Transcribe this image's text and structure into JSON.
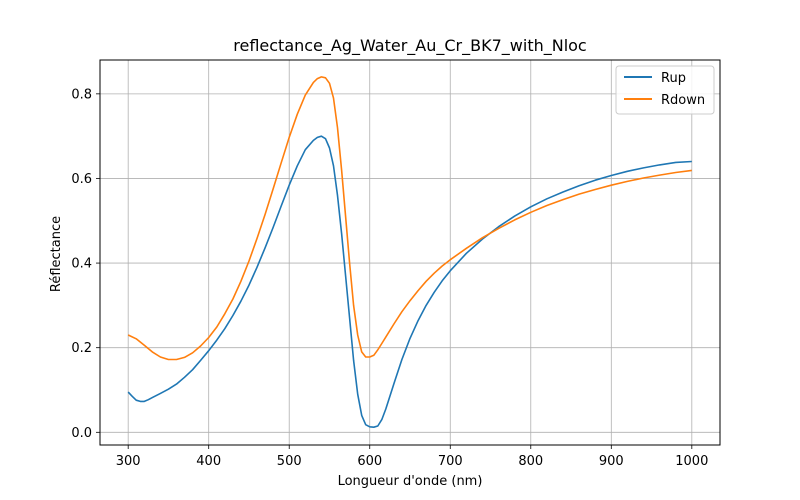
{
  "chart_data": {
    "type": "line",
    "title": "reflectance_Ag_Water_Au_Cr_BK7_with_Nloc",
    "xlabel": "Longueur d'onde (nm)",
    "ylabel": "Réflectance",
    "xlim": [
      265,
      1035
    ],
    "ylim": [
      -0.03,
      0.88
    ],
    "xticks": [
      300,
      400,
      500,
      600,
      700,
      800,
      900,
      1000
    ],
    "yticks": [
      0.0,
      0.2,
      0.4,
      0.6,
      0.8
    ],
    "grid": true,
    "legend_position": "top-right",
    "series": [
      {
        "name": "Rup",
        "color": "#1f77b4",
        "x": [
          300,
          305,
          310,
          315,
          320,
          325,
          330,
          340,
          350,
          360,
          370,
          380,
          390,
          400,
          410,
          420,
          430,
          440,
          450,
          460,
          470,
          480,
          490,
          500,
          510,
          520,
          530,
          535,
          540,
          545,
          550,
          555,
          560,
          565,
          570,
          575,
          580,
          585,
          590,
          595,
          600,
          605,
          610,
          615,
          620,
          630,
          640,
          650,
          660,
          670,
          680,
          690,
          700,
          720,
          740,
          760,
          780,
          800,
          820,
          840,
          860,
          880,
          900,
          920,
          940,
          960,
          980,
          1000
        ],
        "y": [
          0.095,
          0.085,
          0.076,
          0.073,
          0.073,
          0.077,
          0.082,
          0.092,
          0.102,
          0.114,
          0.13,
          0.148,
          0.17,
          0.193,
          0.218,
          0.245,
          0.276,
          0.31,
          0.348,
          0.39,
          0.436,
          0.484,
          0.535,
          0.584,
          0.63,
          0.668,
          0.69,
          0.697,
          0.7,
          0.694,
          0.672,
          0.63,
          0.56,
          0.47,
          0.37,
          0.27,
          0.17,
          0.09,
          0.04,
          0.018,
          0.013,
          0.012,
          0.015,
          0.03,
          0.055,
          0.115,
          0.172,
          0.222,
          0.264,
          0.3,
          0.331,
          0.358,
          0.382,
          0.423,
          0.457,
          0.486,
          0.511,
          0.533,
          0.552,
          0.568,
          0.583,
          0.596,
          0.607,
          0.617,
          0.625,
          0.632,
          0.638,
          0.64
        ]
      },
      {
        "name": "Rdown",
        "color": "#ff7f0e",
        "x": [
          300,
          310,
          320,
          330,
          340,
          350,
          360,
          370,
          380,
          390,
          400,
          410,
          420,
          430,
          440,
          450,
          460,
          470,
          480,
          490,
          500,
          510,
          520,
          530,
          535,
          540,
          545,
          550,
          555,
          560,
          565,
          570,
          575,
          580,
          585,
          590,
          595,
          600,
          605,
          610,
          615,
          620,
          630,
          640,
          650,
          660,
          670,
          680,
          690,
          700,
          720,
          740,
          760,
          780,
          800,
          820,
          840,
          860,
          880,
          900,
          920,
          940,
          960,
          980,
          1000
        ],
        "y": [
          0.23,
          0.221,
          0.206,
          0.19,
          0.178,
          0.172,
          0.172,
          0.177,
          0.188,
          0.204,
          0.224,
          0.249,
          0.28,
          0.315,
          0.357,
          0.405,
          0.458,
          0.515,
          0.575,
          0.637,
          0.697,
          0.752,
          0.797,
          0.827,
          0.836,
          0.84,
          0.838,
          0.825,
          0.79,
          0.72,
          0.62,
          0.51,
          0.4,
          0.3,
          0.23,
          0.19,
          0.178,
          0.178,
          0.182,
          0.195,
          0.21,
          0.225,
          0.256,
          0.285,
          0.311,
          0.335,
          0.357,
          0.376,
          0.393,
          0.408,
          0.435,
          0.46,
          0.482,
          0.502,
          0.52,
          0.536,
          0.55,
          0.563,
          0.574,
          0.584,
          0.593,
          0.601,
          0.608,
          0.614,
          0.619
        ]
      }
    ]
  }
}
